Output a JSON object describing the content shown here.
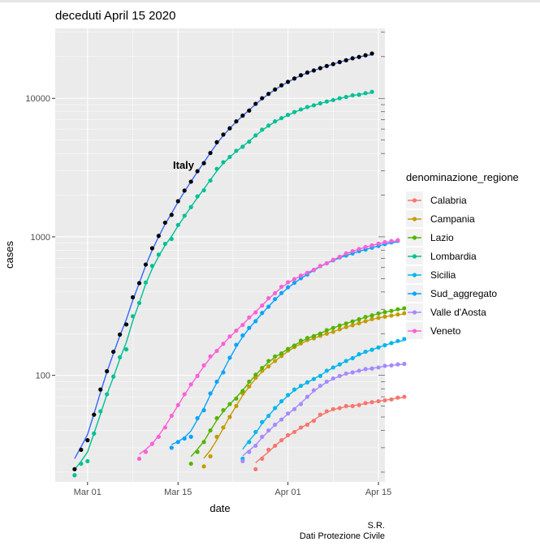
{
  "chart_data": {
    "type": "scatter",
    "title": "deceduti  April 15 2020",
    "xlabel": "date",
    "ylabel": "cases",
    "y_scale": "log10",
    "ylim": [
      17,
      32000
    ],
    "xlim": [
      "2020-02-25",
      "2020-04-16"
    ],
    "x_ticks": [
      {
        "date": "2020-03-01",
        "label": "Mar 01"
      },
      {
        "date": "2020-03-15",
        "label": "Mar 15"
      },
      {
        "date": "2020-04-01",
        "label": "Apr 01"
      },
      {
        "date": "2020-04-15",
        "label": "Apr 15"
      }
    ],
    "y_ticks": [
      {
        "value": 100,
        "label": "100"
      },
      {
        "value": 1000,
        "label": "1000"
      },
      {
        "value": 10000,
        "label": "10000"
      }
    ],
    "grid": true,
    "legend_title": "denominazione_regione",
    "legend_position": "right",
    "annotation": "Italy",
    "caption": [
      "S.R.",
      "Dati Protezione Civile"
    ],
    "italy": {
      "color": "#000000",
      "line_color": "#3366FF",
      "start": "2020-02-28",
      "values": [
        21,
        29,
        34,
        52,
        79,
        107,
        148,
        197,
        233,
        366,
        463,
        631,
        827,
        1016,
        1266,
        1441,
        1809,
        2158,
        2503,
        2978,
        3405,
        4032,
        4825,
        5476,
        6077,
        6820,
        7503,
        8165,
        9134,
        10023,
        10779,
        11591,
        12428,
        13155,
        13915,
        14681,
        15362,
        15887,
        16523,
        17127,
        17669,
        18279,
        18849,
        19468,
        19899,
        20465,
        21067
      ]
    },
    "series": [
      {
        "name": "Calabria",
        "color": "#F8766D",
        "start": "2020-03-27",
        "values": [
          21,
          25,
          29,
          31,
          34,
          37,
          39,
          42,
          44,
          47,
          52,
          55,
          57,
          58,
          60,
          60,
          61,
          63,
          64,
          65,
          66,
          67,
          69,
          70
        ]
      },
      {
        "name": "Campania",
        "color": "#C49A00",
        "start": "2020-03-19",
        "values": [
          22,
          26,
          36,
          42,
          50,
          60,
          74,
          83,
          96,
          108,
          116,
          127,
          138,
          151,
          160,
          170,
          180,
          185,
          193,
          200,
          206,
          215,
          223,
          230,
          238,
          246,
          255,
          260,
          265,
          270,
          275,
          281
        ]
      },
      {
        "name": "Lazio",
        "color": "#53B400",
        "start": "2020-03-17",
        "values": [
          23,
          28,
          33,
          40,
          49,
          56,
          62,
          68,
          77,
          90,
          101,
          113,
          127,
          137,
          144,
          155,
          164,
          178,
          186,
          192,
          200,
          212,
          220,
          229,
          237,
          245,
          254,
          264,
          271,
          280,
          286,
          292,
          300,
          305
        ]
      },
      {
        "name": "Lombardia",
        "color": "#00C094",
        "start": "2020-02-28",
        "values": [
          19,
          23,
          24,
          38,
          55,
          73,
          98,
          135,
          154,
          267,
          333,
          468,
          617,
          744,
          890,
          966,
          1218,
          1420,
          1640,
          1959,
          2168,
          2549,
          3095,
          3456,
          3776,
          4178,
          4474,
          4861,
          5402,
          5944,
          6360,
          6818,
          7199,
          7593,
          7960,
          8311,
          8656,
          8905,
          9202,
          9484,
          9722,
          10022,
          10238,
          10511,
          10621,
          10901,
          11142
        ]
      },
      {
        "name": "Sicilia",
        "color": "#00B6EB",
        "start": "2020-03-25",
        "values": [
          25,
          33,
          39,
          46,
          51,
          58,
          65,
          72,
          79,
          84,
          89,
          94,
          99,
          108,
          114,
          120,
          127,
          133,
          142,
          148,
          153,
          159,
          165,
          171,
          177,
          183
        ]
      },
      {
        "name": "Sud_aggregato",
        "color": "#06A4FF",
        "start": "2020-03-14",
        "values": [
          30,
          33,
          35,
          36,
          49,
          56,
          74,
          90,
          105,
          134,
          166,
          194,
          220,
          246,
          282,
          313,
          355,
          393,
          432,
          466,
          503,
          535,
          575,
          615,
          644,
          678,
          710,
          734,
          759,
          789,
          809,
          835,
          859,
          888,
          912,
          935
        ]
      },
      {
        "name": "Valle d'Aosta",
        "color": "#A58AFF",
        "start": "2020-03-25",
        "values": [
          24,
          28,
          31,
          36,
          40,
          44,
          48,
          53,
          57,
          62,
          70,
          78,
          84,
          90,
          95,
          99,
          103,
          105,
          108,
          111,
          112,
          114,
          117,
          118,
          120,
          121
        ]
      },
      {
        "name": "Veneto",
        "color": "#FB61D7",
        "start": "2020-03-09",
        "values": [
          25,
          28,
          32,
          36,
          42,
          51,
          61,
          73,
          86,
          99,
          118,
          137,
          150,
          169,
          191,
          210,
          231,
          262,
          285,
          319,
          361,
          392,
          436,
          470,
          496,
          525,
          550,
          579,
          616,
          644,
          683,
          717,
          760,
          788,
          816,
          845,
          869,
          893,
          915,
          932,
          947
        ]
      }
    ]
  }
}
